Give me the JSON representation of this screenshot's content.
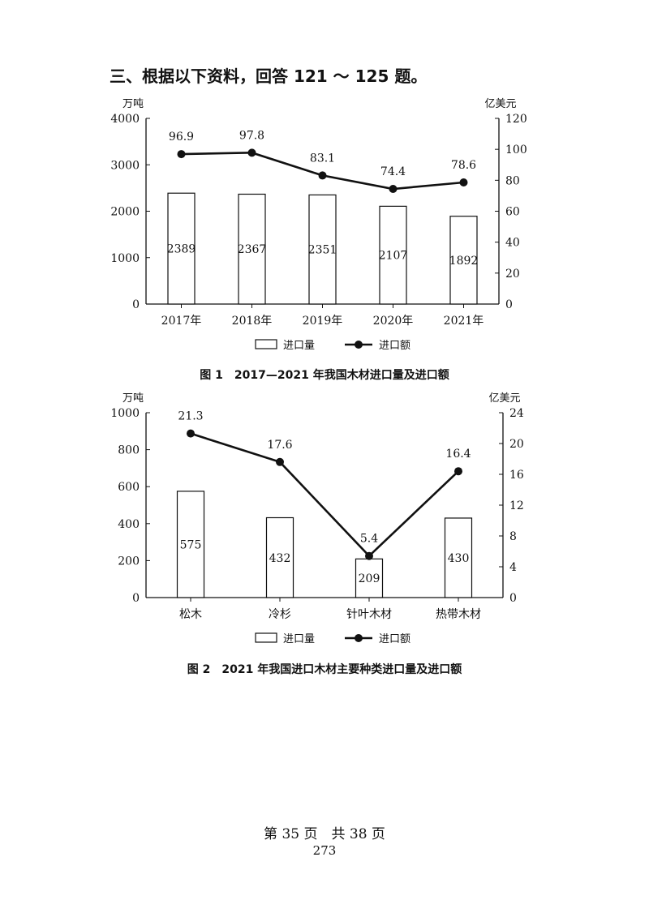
{
  "section_title": "三、根据以下资料，回答 121 ～ 125 题。",
  "footer": {
    "pages": "第 35 页　共 38 页",
    "number": "273"
  },
  "chart_data": [
    {
      "type": "bar",
      "caption": "图 1　2017—2021 年我国木材进口量及进口额",
      "categories": [
        "2017年",
        "2018年",
        "2019年",
        "2020年",
        "2021年"
      ],
      "y_left_unit": "万吨",
      "y_right_unit": "亿美元",
      "y_left_lim": [
        0,
        4000
      ],
      "y_left_ticks": [
        "0",
        "1000",
        "2000",
        "3000",
        "4000"
      ],
      "y_right_lim": [
        0,
        120
      ],
      "y_right_ticks": [
        "0",
        "20",
        "40",
        "60",
        "80",
        "100",
        "120"
      ],
      "grid": false,
      "legend_position": "bottom",
      "series": [
        {
          "name": "进口量",
          "type": "bar",
          "axis": "left",
          "values": [
            2389,
            2367,
            2351,
            2107,
            1892
          ],
          "labels": [
            "2389",
            "2367",
            "2351",
            "2107",
            "1892"
          ]
        },
        {
          "name": "进口额",
          "type": "line",
          "axis": "right",
          "values": [
            96.9,
            97.8,
            83.1,
            74.4,
            78.6
          ],
          "labels": [
            "96.9",
            "97.8",
            "83.1",
            "74.4",
            "78.6"
          ]
        }
      ]
    },
    {
      "type": "bar",
      "caption": "图 2　2021 年我国进口木材主要种类进口量及进口额",
      "categories": [
        "松木",
        "冷杉",
        "针叶木材",
        "热带木材"
      ],
      "y_left_unit": "万吨",
      "y_right_unit": "亿美元",
      "y_left_lim": [
        0,
        1000
      ],
      "y_left_ticks": [
        "0",
        "200",
        "400",
        "600",
        "800",
        "1000"
      ],
      "y_right_lim": [
        0,
        24
      ],
      "y_right_ticks": [
        "0",
        "4",
        "8",
        "12",
        "16",
        "20",
        "24"
      ],
      "grid": false,
      "legend_position": "bottom",
      "series": [
        {
          "name": "进口量",
          "type": "bar",
          "axis": "left",
          "values": [
            575,
            432,
            209,
            430
          ],
          "labels": [
            "575",
            "432",
            "209",
            "430"
          ]
        },
        {
          "name": "进口额",
          "type": "line",
          "axis": "right",
          "values": [
            21.3,
            17.6,
            5.4,
            16.4
          ],
          "labels": [
            "21.3",
            "17.6",
            "5.4",
            "16.4"
          ]
        }
      ]
    }
  ]
}
